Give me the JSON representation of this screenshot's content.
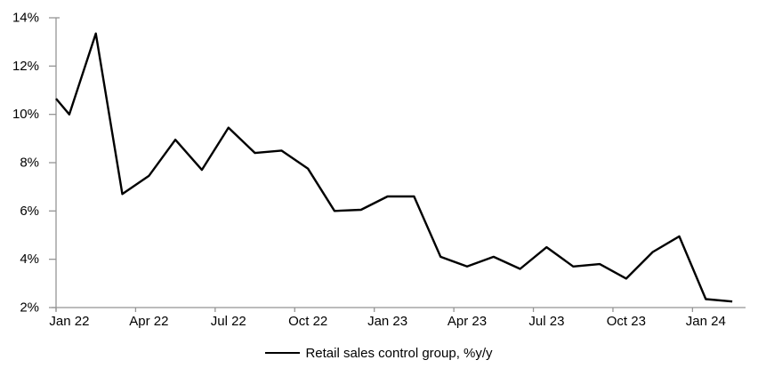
{
  "chart_data": {
    "type": "line",
    "title": "",
    "legend": "Retail sales control group, %y/y",
    "legend_position": "bottom-center",
    "series_color": "#000000",
    "axis_color": "#949494",
    "background": "#ffffff",
    "grid": false,
    "ylim": [
      2,
      14
    ],
    "y_tick_values": [
      2,
      4,
      6,
      8,
      10,
      12,
      14
    ],
    "y_tick_labels": [
      "2%",
      "4%",
      "6%",
      "8%",
      "10%",
      "12%",
      "14%"
    ],
    "x_tick_labels": [
      "Jan 22",
      "Apr 22",
      "Jul 22",
      "Oct 22",
      "Jan 23",
      "Apr 23",
      "Jul 23",
      "Oct 23",
      "Jan 24"
    ],
    "x_tick_month_indexes": [
      0,
      3,
      6,
      9,
      12,
      15,
      18,
      21,
      24
    ],
    "months": [
      "Jan 22",
      "Feb 22",
      "Mar 22",
      "Apr 22",
      "May 22",
      "Jun 22",
      "Jul 22",
      "Aug 22",
      "Sep 22",
      "Oct 22",
      "Nov 22",
      "Dec 22",
      "Jan 23",
      "Feb 23",
      "Mar 23",
      "Apr 23",
      "May 23",
      "Jun 23",
      "Jul 23",
      "Aug 23",
      "Sep 23",
      "Oct 23",
      "Nov 23",
      "Dec 23",
      "Jan 24",
      "Feb 24"
    ],
    "values": [
      10.0,
      13.35,
      6.7,
      7.45,
      8.95,
      7.7,
      9.45,
      8.4,
      8.5,
      7.75,
      6.0,
      6.05,
      6.6,
      6.6,
      4.1,
      3.7,
      4.1,
      3.6,
      4.5,
      3.7,
      3.8,
      3.2,
      4.3,
      4.95,
      2.35,
      2.25
    ],
    "left_edge_value": 10.65
  }
}
